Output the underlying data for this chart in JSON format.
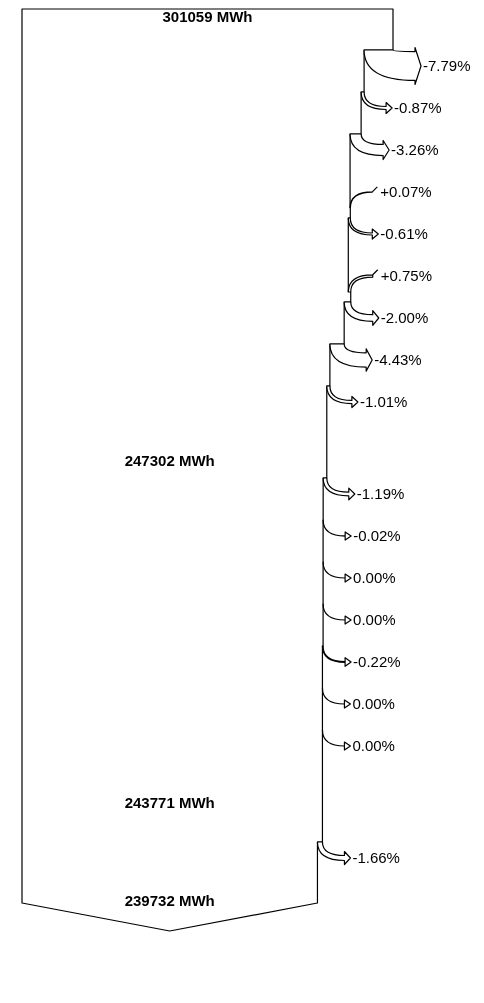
{
  "chart_data": {
    "type": "other",
    "categories": [
      null,
      null,
      null,
      null,
      null,
      null,
      null,
      null,
      null,
      null,
      null,
      null,
      null,
      null,
      null,
      null,
      null
    ],
    "values": [
      -7.79,
      -0.87,
      -3.26,
      0.07,
      -0.61,
      0.75,
      -2.0,
      -4.43,
      -1.01,
      -1.19,
      -0.02,
      0.0,
      0.0,
      -0.22,
      0.0,
      0.0,
      -1.66
    ],
    "value_labels": [
      "-7.79%",
      "-0.87%",
      "-3.26%",
      "+0.07%",
      "-0.61%",
      "+0.75%",
      "-2.00%",
      "-4.43%",
      "-1.01%",
      "-1.19%",
      "-0.02%",
      "0.00%",
      "0.00%",
      "-0.22%",
      "0.00%",
      "0.00%",
      "-1.66%"
    ],
    "annotations": [
      "301059 MWh",
      "247302 MWh",
      "243771 MWh",
      "239732 MWh"
    ]
  }
}
